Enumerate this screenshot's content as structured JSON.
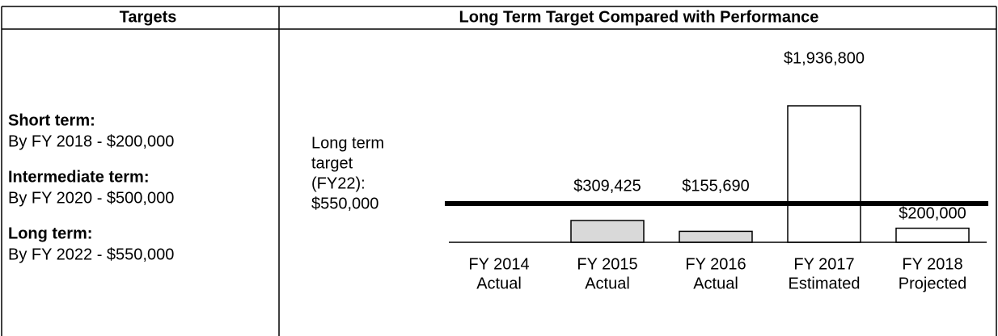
{
  "table": {
    "headers": [
      "Targets",
      "Long Term Target Compared with Performance"
    ],
    "targets": [
      {
        "term": "Short term:",
        "detail": "By FY 2018 - $200,000"
      },
      {
        "term": "Intermediate term:",
        "detail": "By FY 2020 - $500,000"
      },
      {
        "term": "Long term:",
        "detail": "By FY 2022 - $550,000"
      }
    ]
  },
  "chart_data": {
    "type": "bar",
    "categories": [
      "FY 2014",
      "FY 2015",
      "FY 2016",
      "FY 2017",
      "FY 2018"
    ],
    "category_status": [
      "Actual",
      "Actual",
      "Actual",
      "Estimated",
      "Projected"
    ],
    "values": [
      null,
      309425,
      155690,
      1936800,
      200000
    ],
    "value_labels": [
      null,
      "$309,425",
      "$155,690",
      "$1,936,800",
      "$200,000"
    ],
    "colors": [
      null,
      "#d9d9d9",
      "#d9d9d9",
      "#ffffff",
      "#ffffff"
    ],
    "target": {
      "label_lines": [
        "Long term",
        "target",
        "(FY22):"
      ],
      "value": 550000,
      "value_label": "$550,000"
    }
  }
}
